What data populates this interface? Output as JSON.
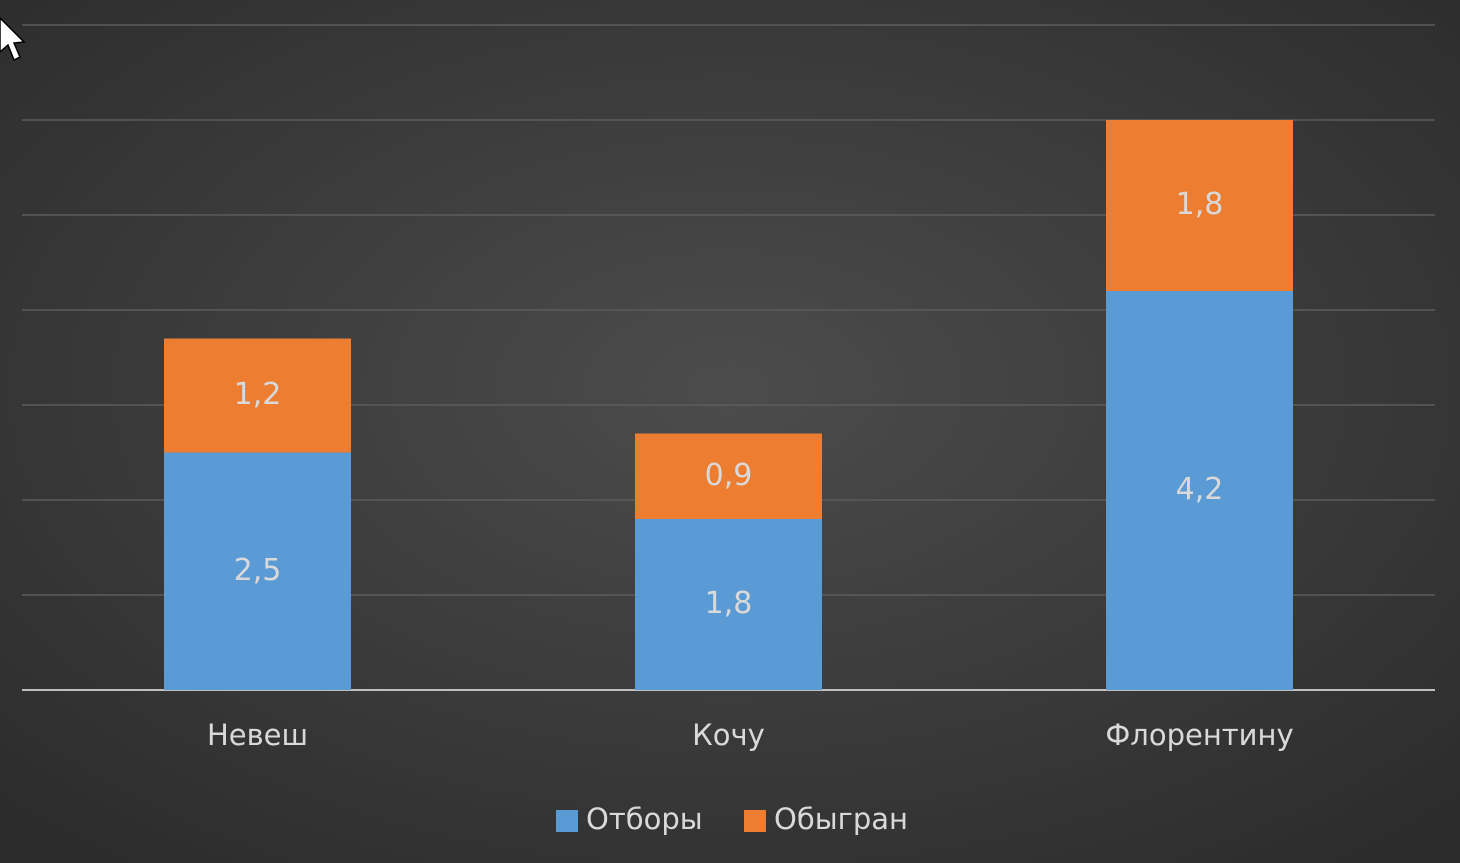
{
  "chart_data": {
    "type": "stacked_bar",
    "categories": [
      "Невеш",
      "Кочу",
      "Флорентину"
    ],
    "series": [
      {
        "name": "Отборы",
        "color": "#5b9bd5",
        "values": [
          2.5,
          1.8,
          4.2
        ],
        "value_labels": [
          "2,5",
          "1,8",
          "4,2"
        ]
      },
      {
        "name": "Обыгран",
        "color": "#ed7d31",
        "values": [
          1.2,
          0.9,
          1.8
        ],
        "value_labels": [
          "1,2",
          "0,9",
          "1,8"
        ]
      }
    ],
    "ylim": [
      0,
      7
    ],
    "yticks": [
      0,
      1,
      2,
      3,
      4,
      5,
      6,
      7
    ],
    "grid": true,
    "show_tick_labels": false,
    "legend": "bottom"
  }
}
